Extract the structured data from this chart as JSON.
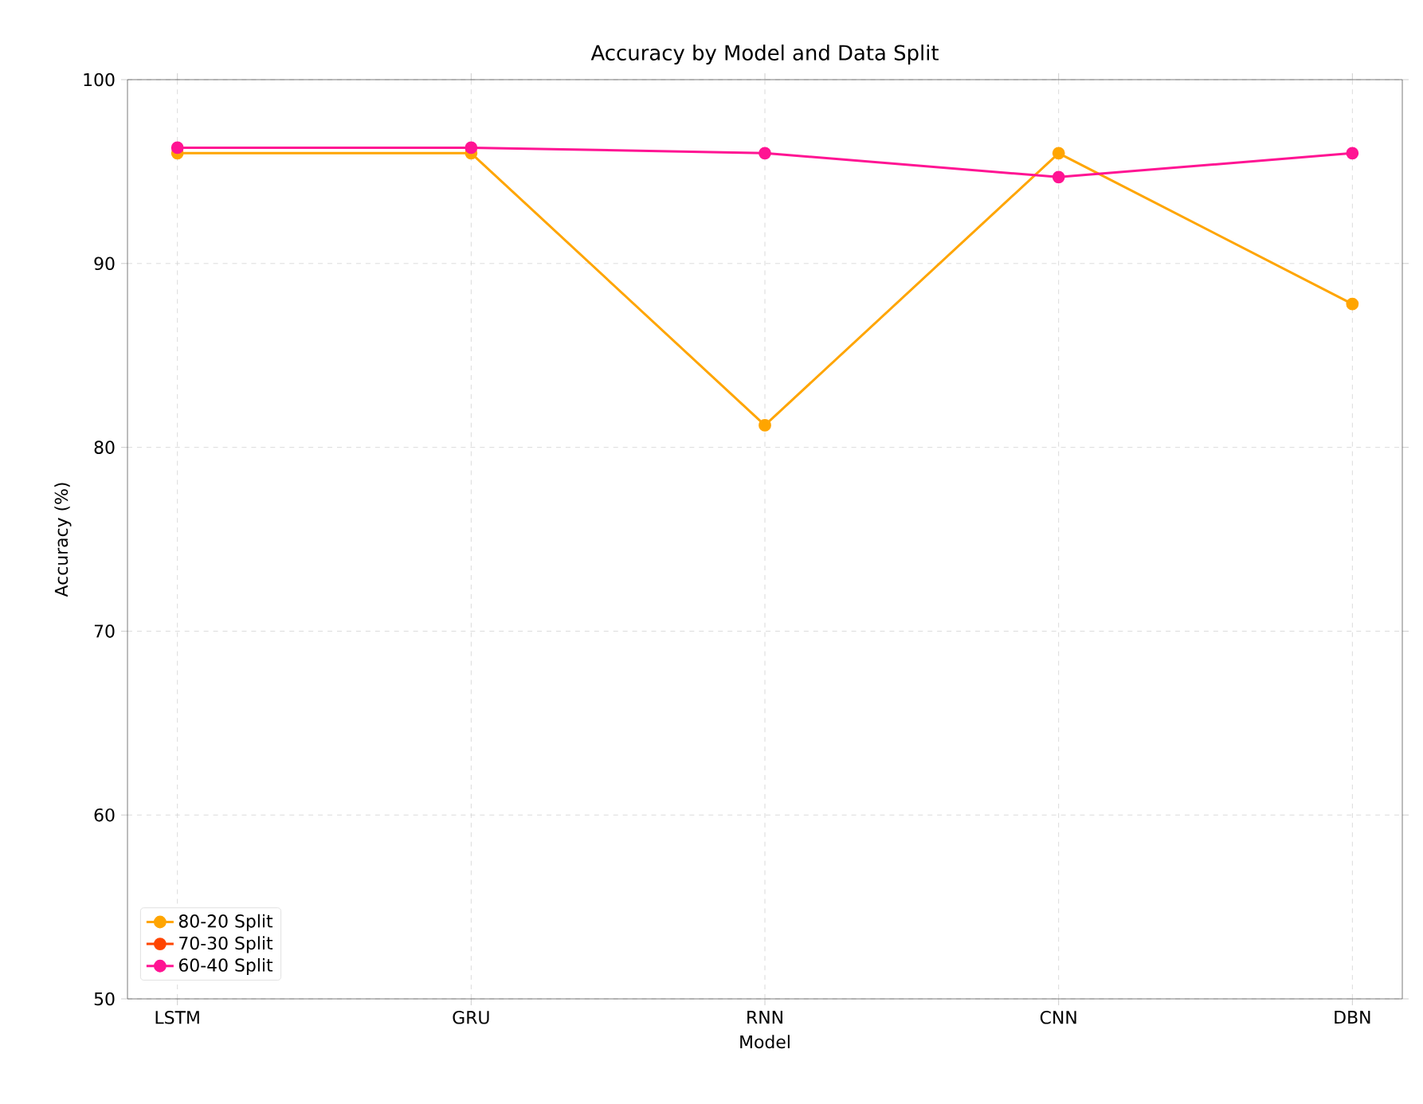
{
  "chart_data": {
    "type": "line",
    "title": "Accuracy by Model and Data Split",
    "xlabel": "Model",
    "ylabel": "Accuracy (%)",
    "categories": [
      "LSTM",
      "GRU",
      "RNN",
      "CNN",
      "DBN"
    ],
    "series": [
      {
        "name": "80-20 Split",
        "color": "#ffa500",
        "values": [
          96.0,
          96.0,
          81.2,
          96.0,
          87.8
        ]
      },
      {
        "name": "70-30 Split",
        "color": "#ff4500",
        "values": [
          null,
          null,
          null,
          null,
          null
        ]
      },
      {
        "name": "60-40 Split",
        "color": "#ff1493",
        "values": [
          96.3,
          96.3,
          96.0,
          94.7,
          96.0
        ]
      }
    ],
    "ylim": [
      50,
      100
    ],
    "yticks": [
      50,
      60,
      70,
      80,
      90,
      100
    ],
    "grid": true,
    "legend": "bottom left",
    "marker": "circle",
    "line_style": "solid"
  }
}
